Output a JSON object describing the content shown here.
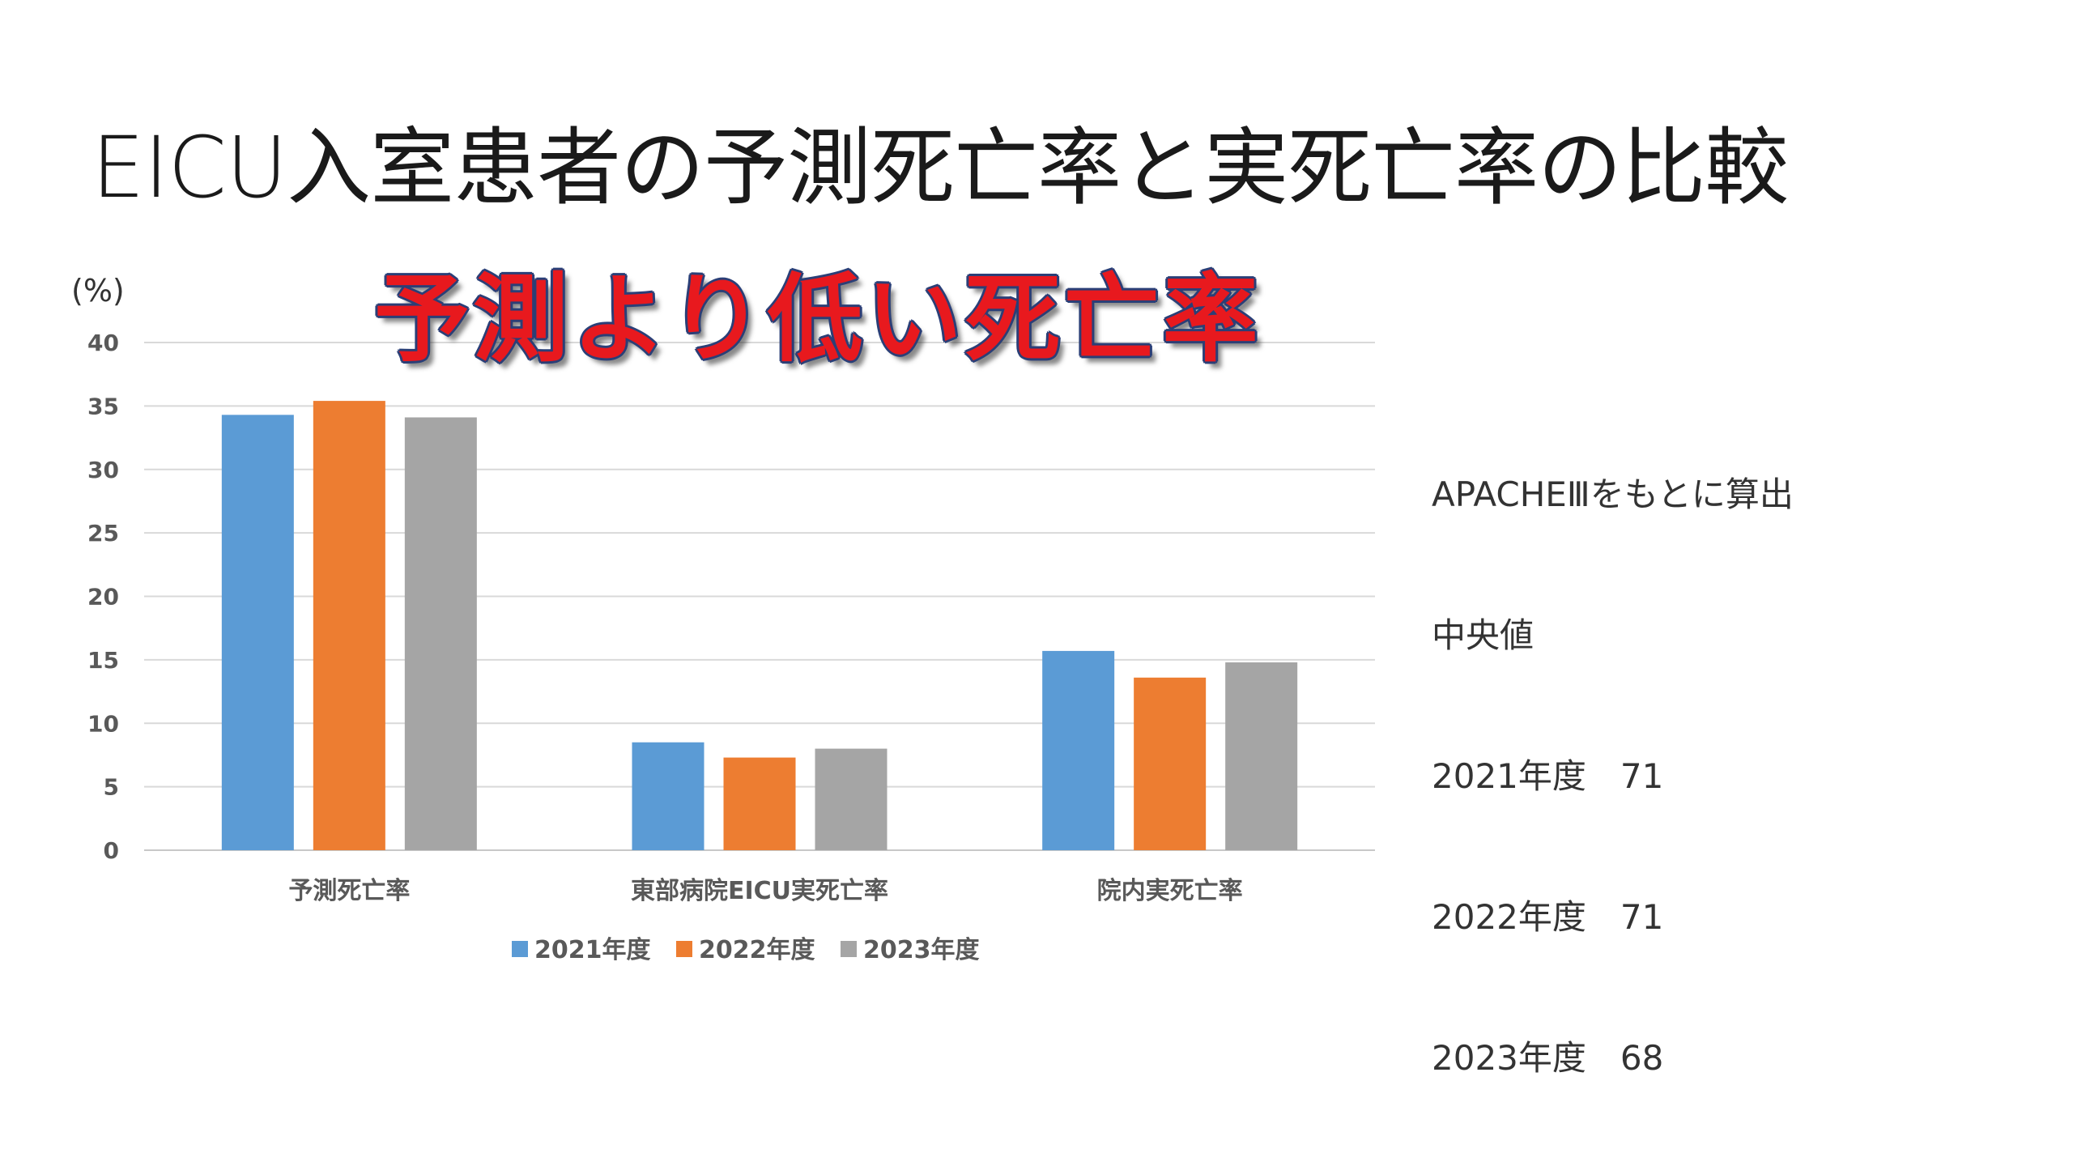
{
  "slide": {
    "title": "EICU入室患者の予測死亡率と実死亡率の比較",
    "headline": "予測より低い死亡率",
    "info_lines": [
      "APACHEⅢをもとに算出",
      "中央値",
      "2021年度　71",
      "2022年度　71",
      "2023年度　68"
    ]
  },
  "chart_data": {
    "type": "bar",
    "title": "",
    "xlabel": "",
    "ylabel": "(%)",
    "ylim": [
      0,
      40
    ],
    "yticks": [
      0,
      5,
      10,
      15,
      20,
      25,
      30,
      35,
      40
    ],
    "grid": true,
    "legend_position": "bottom",
    "categories": [
      "予測死亡率",
      "東部病院EICU実死亡率",
      "院内実死亡率"
    ],
    "series": [
      {
        "name": "2021年度",
        "color": "#5b9bd5",
        "values": [
          34.3,
          8.5,
          15.7
        ]
      },
      {
        "name": "2022年度",
        "color": "#ed7d31",
        "values": [
          35.4,
          7.3,
          13.6
        ]
      },
      {
        "name": "2023年度",
        "color": "#a5a5a5",
        "values": [
          34.1,
          8.0,
          14.8
        ]
      }
    ]
  }
}
